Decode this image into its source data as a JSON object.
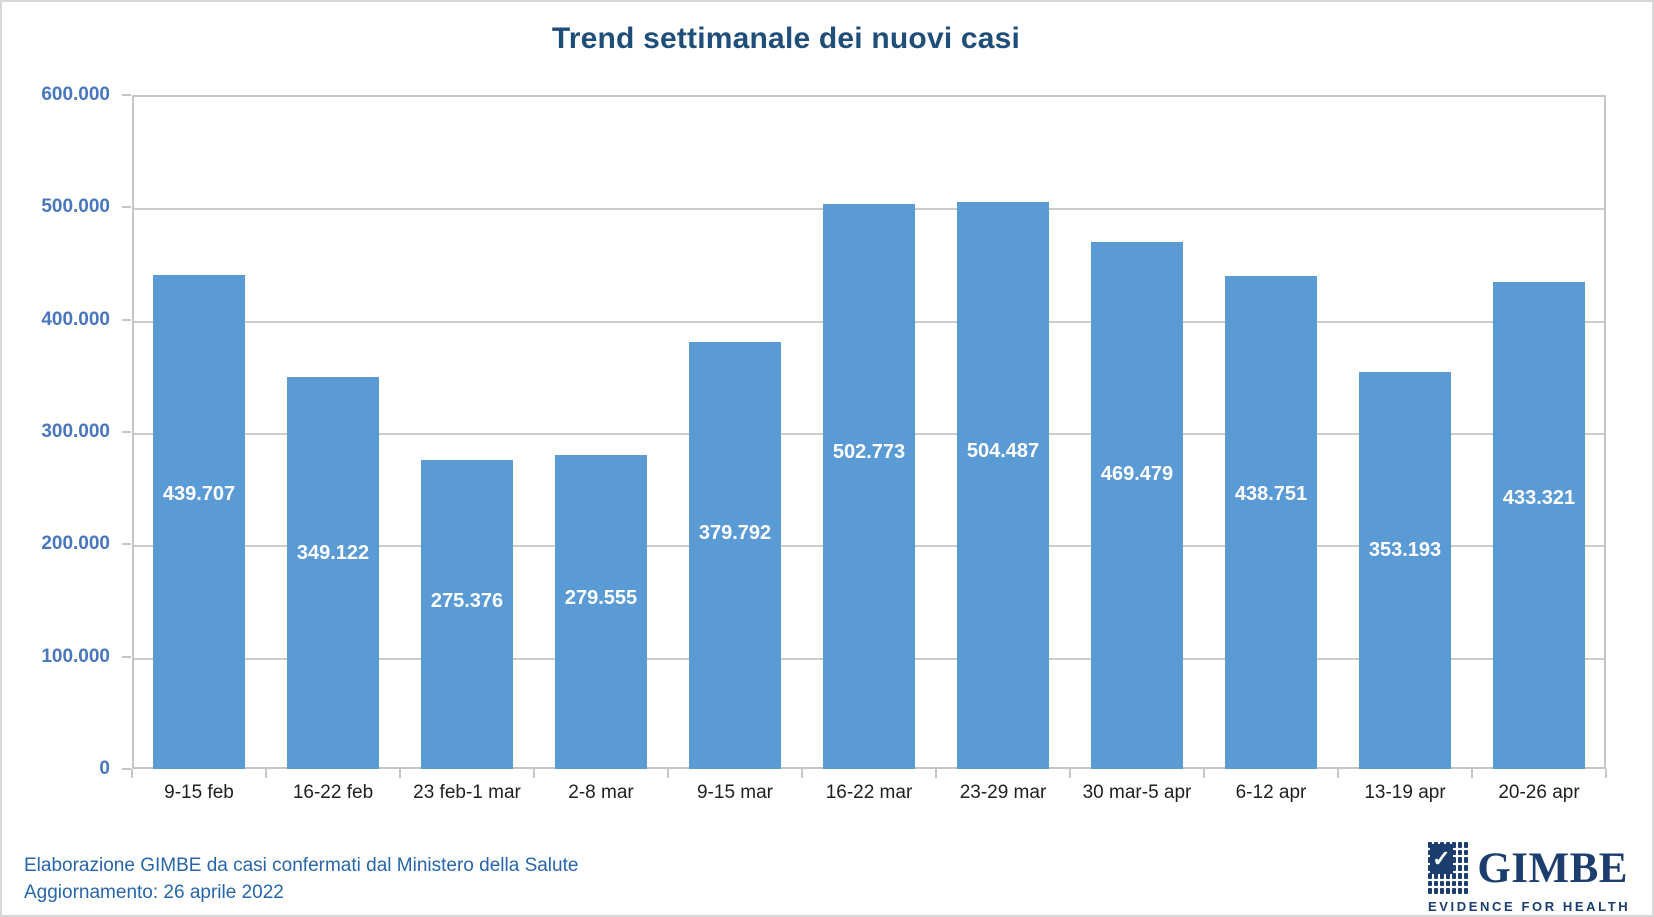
{
  "title": "Trend settimanale dei nuovi casi",
  "chart_data": {
    "type": "bar",
    "title": "Trend settimanale dei nuovi casi",
    "categories": [
      "9-15 feb",
      "16-22 feb",
      "23 feb-1 mar",
      "2-8 mar",
      "9-15 mar",
      "16-22 mar",
      "23-29 mar",
      "30 mar-5 apr",
      "6-12 apr",
      "13-19 apr",
      "20-26 apr"
    ],
    "values": [
      439707,
      349122,
      275376,
      279555,
      379792,
      502773,
      504487,
      469479,
      438751,
      353193,
      433321
    ],
    "value_labels": [
      "439.707",
      "349.122",
      "275.376",
      "279.555",
      "379.792",
      "502.773",
      "504.487",
      "469.479",
      "438.751",
      "353.193",
      "433.321"
    ],
    "xlabel": "",
    "ylabel": "",
    "ylim": [
      0,
      600000
    ],
    "y_tick_values": [
      600000,
      500000,
      400000,
      300000,
      200000,
      100000,
      0
    ],
    "y_tick_labels": [
      "600.000",
      "500.000",
      "400.000",
      "300.000",
      "200.000",
      "100.000",
      "0"
    ],
    "grid": "horizontal",
    "legend": "none",
    "bar_color": "#5B9BD5",
    "data_label_color": "#FFFFFF"
  },
  "footer": {
    "line1": "Elaborazione GIMBE da casi confermati dal Ministero della Salute",
    "line2": "Aggiornamento: 26 aprile 2022"
  },
  "logo": {
    "wordmark": "GIMBE",
    "tagline": "EVIDENCE FOR HEALTH",
    "check_icon": "✓"
  },
  "colors": {
    "title": "#1F4E79",
    "bar": "#5B9BD5",
    "y_axis_label": "#4877BE",
    "x_axis_label": "#1F1F1F",
    "gridline": "#CCCCCC",
    "footer_text": "#2766AC",
    "logo_navy": "#1C3E6E"
  }
}
